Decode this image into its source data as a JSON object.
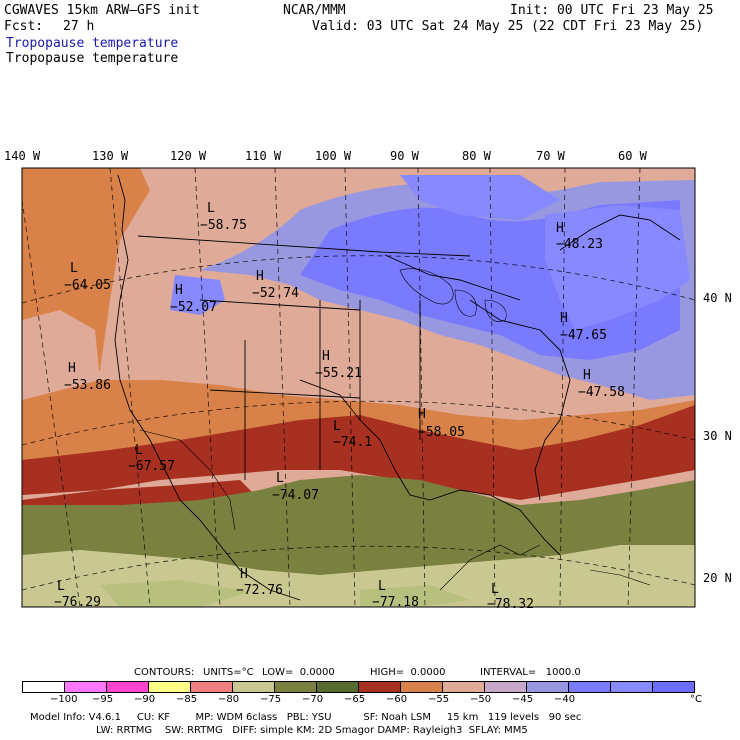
{
  "header": {
    "model": "CGWAVES 15km ARW–GFS init",
    "org": "NCAR/MMM",
    "init": "Init: 00 UTC Fri 23 May 25",
    "fcst_label": "Fcst:",
    "fcst_value": "27 h",
    "valid": "Valid: 03 UTC Sat 24 May 25 (22 CDT Fri 23 May 25)",
    "field_title_blue": "Tropopause temperature",
    "field_title_black": "Tropopause temperature"
  },
  "map": {
    "lon_labels": [
      "140 W",
      "130 W",
      "120 W",
      "110 W",
      "100 W",
      "90 W",
      "80 W",
      "70 W",
      "60 W"
    ],
    "lat_labels": [
      "40 N",
      "30 N",
      "20 N"
    ],
    "highs_lows": [
      {
        "type": "L",
        "value": "−58.75"
      },
      {
        "type": "H",
        "value": "−48.23"
      },
      {
        "type": "L",
        "value": "−64.05"
      },
      {
        "type": "H",
        "value": "−52.07"
      },
      {
        "type": "H",
        "value": "−52.74"
      },
      {
        "type": "H",
        "value": "−47.65"
      },
      {
        "type": "H",
        "value": "−55.21"
      },
      {
        "type": "H",
        "value": "−53.86"
      },
      {
        "type": "H",
        "value": "−47.58"
      },
      {
        "type": "L",
        "value": "−74.1"
      },
      {
        "type": "H",
        "value": "−58.05"
      },
      {
        "type": "L",
        "value": "−67.57"
      },
      {
        "type": "L",
        "value": "−74.07"
      },
      {
        "type": "H",
        "value": "−72.76"
      },
      {
        "type": "L",
        "value": "−76.29"
      },
      {
        "type": "L",
        "value": "−77.18"
      },
      {
        "type": "L",
        "value": "−78.32"
      }
    ]
  },
  "contours": {
    "label": "CONTOURS:",
    "units": "UNITS=°C",
    "low": "LOW=  0.0000",
    "high": "HIGH=  0.0000",
    "interval": "INTERVAL=   1000.0"
  },
  "colorbar": {
    "colors": [
      "#ffffff",
      "#ff77ff",
      "#ff44d0",
      "#ffff88",
      "#f08080",
      "#c8c890",
      "#7a8040",
      "#556b2f",
      "#a83020",
      "#d8824a",
      "#e0aa98",
      "#c8a8c8",
      "#9898e0",
      "#7a7aff",
      "#8888ff",
      "#6c6cff"
    ],
    "ticks": [
      "−100",
      "−95",
      "−90",
      "−85",
      "−80",
      "−75",
      "−70",
      "−65",
      "−60",
      "−55",
      "−50",
      "−45",
      "−40"
    ],
    "unit": "°C"
  },
  "footer": {
    "line1": "Model Info: V4.6.1     CU: KF        MP: WDM 6class   PBL: YSU          SF: Noah LSM     15 km   119 levels   90 sec",
    "line2": "LW: RRTMG    SW: RRTMG   DIFF: simple KM: 2D Smagor DAMP: Rayleigh3  SFLAY: MM5"
  }
}
